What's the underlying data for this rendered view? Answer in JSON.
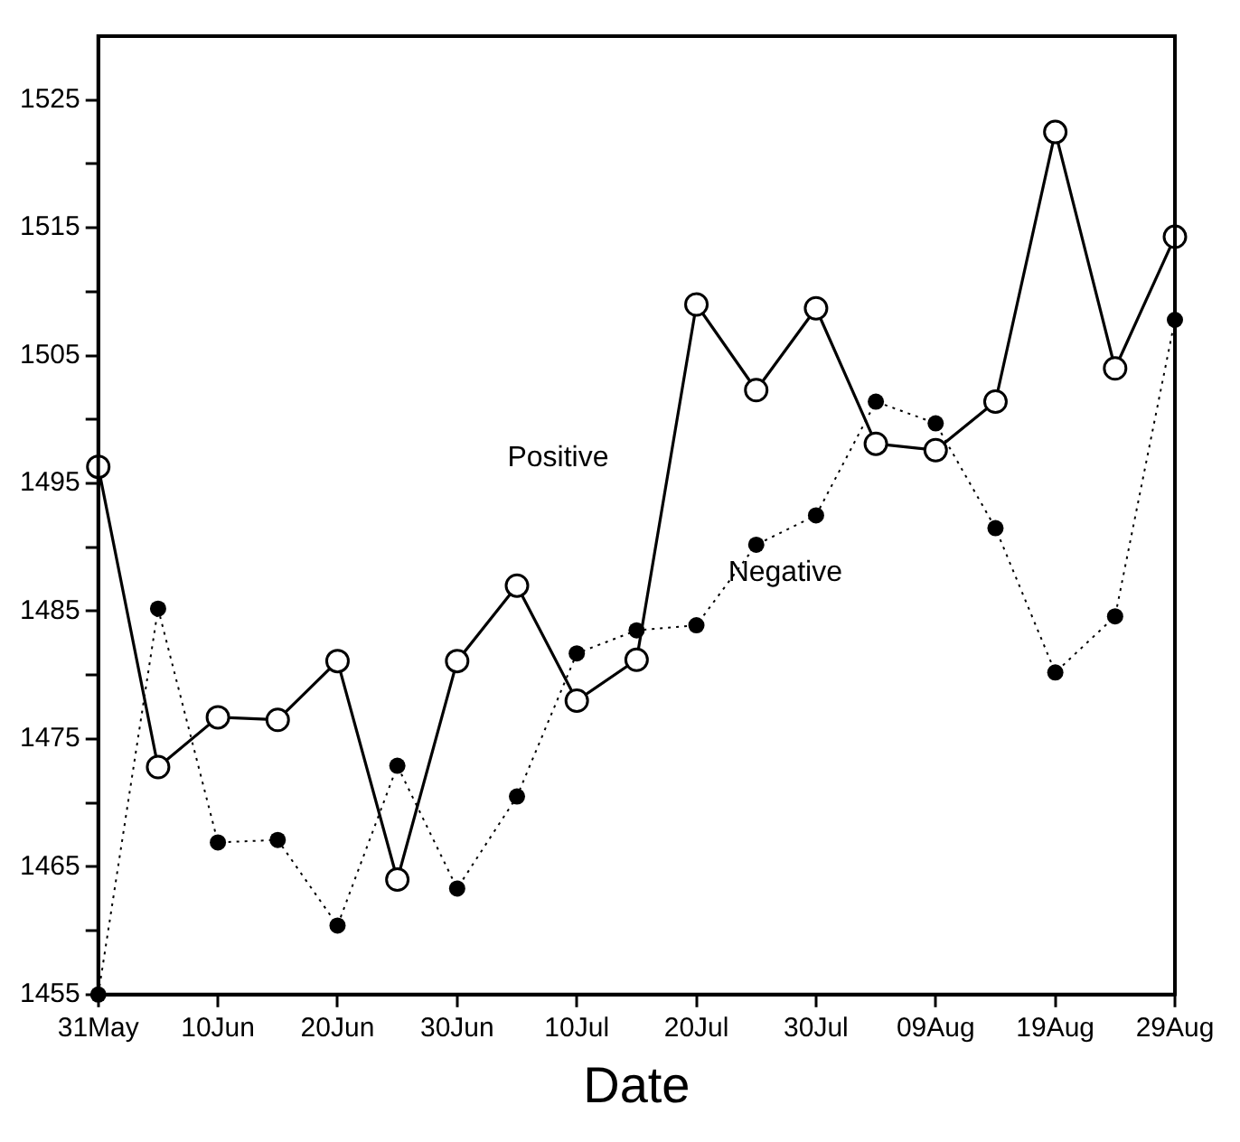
{
  "chart_data": {
    "type": "line",
    "xlabel": "Date",
    "x": [
      "--05-31",
      "--06-05",
      "--06-10",
      "--06-15",
      "--06-20",
      "--06-25",
      "--06-30",
      "--07-05",
      "--07-10",
      "--07-15",
      "--07-20",
      "--07-25",
      "--07-30",
      "--08-04",
      "--08-09",
      "--08-14",
      "--08-19",
      "--08-24",
      "--08-29"
    ],
    "series": [
      {
        "name": "Positive",
        "color": "#000000",
        "marker": "circle",
        "line_style": "solid",
        "values": [
          1496.3,
          1472.8,
          1476.7,
          1476.5,
          1481.1,
          1464,
          1481.1,
          1487,
          1478,
          1481.2,
          1509,
          1502.3,
          1508.7,
          1498.1,
          1497.6,
          1501.4,
          1522.5,
          1504,
          1514.3
        ]
      },
      {
        "name": "Negative",
        "color": "#000000",
        "marker": "circle",
        "line_style": "dotted",
        "values": [
          1455,
          1485.2,
          1466.9,
          1467.1,
          1460.4,
          1472.9,
          1463.3,
          1470.5,
          1481.7,
          1483.5,
          1483.9,
          1490.2,
          1492.5,
          1501.4,
          1499.7,
          1491.5,
          1480.2,
          1484.6,
          1507.8
        ]
      }
    ],
    "xlim": [
      "--05-31",
      "--08-29"
    ],
    "xticks": [
      {
        "value": "--05-31",
        "label": "31May"
      },
      {
        "value": "--06-10",
        "label": "10Jun"
      },
      {
        "value": "--06-20",
        "label": "20Jun"
      },
      {
        "value": "--06-30",
        "label": "30Jun"
      },
      {
        "value": "--07-10",
        "label": "10Jul"
      },
      {
        "value": "--07-20",
        "label": "20Jul"
      },
      {
        "value": "--07-30",
        "label": "30Jul"
      },
      {
        "value": "--08-09",
        "label": "09Aug"
      },
      {
        "value": "--08-19",
        "label": "19Aug"
      },
      {
        "value": "--08-29",
        "label": "29Aug"
      }
    ],
    "ylim": [
      1455,
      1530
    ],
    "yticks": [
      1455,
      {
        "value": 1460,
        "label": null
      },
      1465,
      {
        "value": 1470,
        "label": null
      },
      1475,
      {
        "value": 1480,
        "label": null
      },
      1485,
      {
        "value": 1490,
        "label": null
      },
      1495,
      {
        "value": 1500,
        "label": null
      },
      1505,
      {
        "value": 1510,
        "label": null
      },
      1515,
      {
        "value": 1520,
        "label": null
      },
      1525
    ],
    "grid": false,
    "legend": false
  }
}
